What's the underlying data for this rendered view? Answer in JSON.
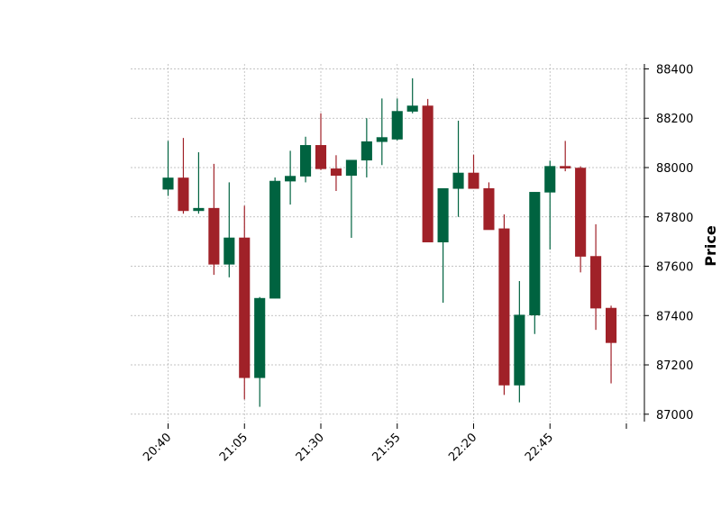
{
  "chart_data": {
    "type": "candlestick",
    "title": "",
    "xlabel": "",
    "ylabel": "Price",
    "ylim": [
      86970,
      88420
    ],
    "yticks": [
      87000,
      87200,
      87400,
      87600,
      87800,
      88000,
      88200,
      88400
    ],
    "ytick_labels": [
      "87000",
      "87200",
      "87400",
      "87600",
      "87800",
      "88000",
      "88200",
      "88400"
    ],
    "xticks": [
      {
        "index": 0,
        "label": "20:40"
      },
      {
        "index": 5,
        "label": "21:05"
      },
      {
        "index": 10,
        "label": "21:30"
      },
      {
        "index": 15,
        "label": "21:55"
      },
      {
        "index": 20,
        "label": "22:20"
      },
      {
        "index": 25,
        "label": "22:45"
      },
      {
        "index": 30,
        "label": ""
      }
    ],
    "grid": true,
    "colors": {
      "up": "#006340",
      "down": "#a02128",
      "grid": "#b0b0b0"
    },
    "candles": [
      {
        "time": "20:40",
        "open": 87912,
        "high": 88108,
        "low": 87885,
        "close": 87958
      },
      {
        "time": "20:45",
        "open": 87958,
        "high": 88120,
        "low": 87813,
        "close": 87825
      },
      {
        "time": "20:50",
        "open": 87825,
        "high": 88062,
        "low": 87813,
        "close": 87835
      },
      {
        "time": "20:55",
        "open": 87835,
        "high": 88015,
        "low": 87565,
        "close": 87608
      },
      {
        "time": "21:00",
        "open": 87608,
        "high": 87940,
        "low": 87555,
        "close": 87715
      },
      {
        "time": "21:05",
        "open": 87715,
        "high": 87845,
        "low": 87060,
        "close": 87148
      },
      {
        "time": "21:10",
        "open": 87148,
        "high": 87475,
        "low": 87030,
        "close": 87470
      },
      {
        "time": "21:15",
        "open": 87470,
        "high": 87960,
        "low": 87470,
        "close": 87945
      },
      {
        "time": "21:20",
        "open": 87945,
        "high": 88068,
        "low": 87850,
        "close": 87965
      },
      {
        "time": "21:25",
        "open": 87965,
        "high": 88125,
        "low": 87940,
        "close": 88090
      },
      {
        "time": "21:30",
        "open": 88090,
        "high": 88220,
        "low": 87990,
        "close": 87995
      },
      {
        "time": "21:35",
        "open": 87995,
        "high": 88050,
        "low": 87905,
        "close": 87968
      },
      {
        "time": "21:40",
        "open": 87968,
        "high": 88030,
        "low": 87715,
        "close": 88030
      },
      {
        "time": "21:45",
        "open": 88030,
        "high": 88200,
        "low": 87960,
        "close": 88105
      },
      {
        "time": "21:50",
        "open": 88105,
        "high": 88280,
        "low": 88010,
        "close": 88122
      },
      {
        "time": "21:55",
        "open": 88115,
        "high": 88280,
        "low": 88110,
        "close": 88228
      },
      {
        "time": "22:00",
        "open": 88228,
        "high": 88362,
        "low": 88220,
        "close": 88250
      },
      {
        "time": "22:05",
        "open": 88250,
        "high": 88278,
        "low": 87698,
        "close": 87698
      },
      {
        "time": "22:10",
        "open": 87698,
        "high": 87915,
        "low": 87452,
        "close": 87915
      },
      {
        "time": "22:15",
        "open": 87915,
        "high": 88190,
        "low": 87800,
        "close": 87978
      },
      {
        "time": "22:20",
        "open": 87978,
        "high": 88052,
        "low": 87915,
        "close": 87915
      },
      {
        "time": "22:25",
        "open": 87915,
        "high": 87940,
        "low": 87748,
        "close": 87748
      },
      {
        "time": "22:30",
        "open": 87752,
        "high": 87810,
        "low": 87078,
        "close": 87118
      },
      {
        "time": "22:35",
        "open": 87118,
        "high": 87540,
        "low": 87048,
        "close": 87402
      },
      {
        "time": "22:40",
        "open": 87402,
        "high": 87900,
        "low": 87325,
        "close": 87900
      },
      {
        "time": "22:45",
        "open": 87900,
        "high": 88028,
        "low": 87668,
        "close": 88005
      },
      {
        "time": "22:50",
        "open": 88005,
        "high": 88108,
        "low": 87985,
        "close": 87998
      },
      {
        "time": "22:55",
        "open": 87998,
        "high": 88005,
        "low": 87575,
        "close": 87640
      },
      {
        "time": "23:00",
        "open": 87640,
        "high": 87770,
        "low": 87342,
        "close": 87430
      },
      {
        "time": "23:05",
        "open": 87430,
        "high": 87440,
        "low": 87125,
        "close": 87290
      }
    ]
  }
}
